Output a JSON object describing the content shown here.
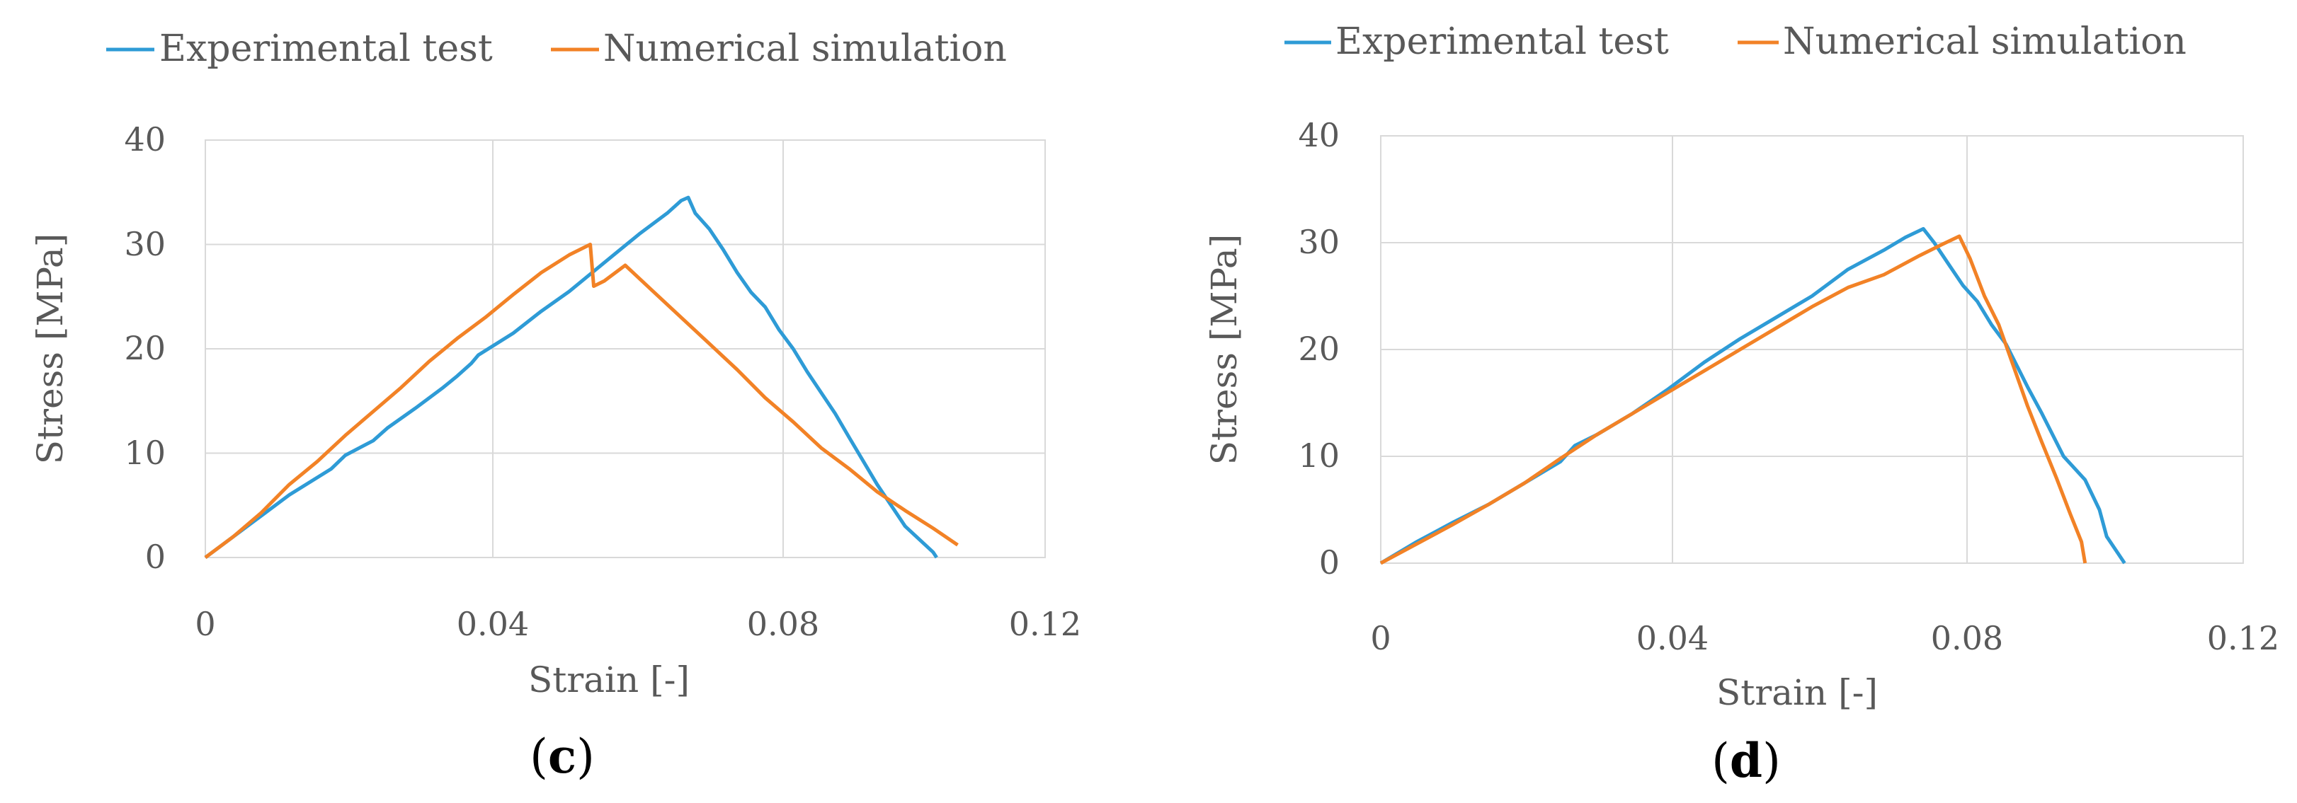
{
  "chart_data": [
    {
      "type": "line",
      "panel_label_open": "(",
      "panel_letter": "c",
      "panel_label_close": ")",
      "xlabel": "Strain [-]",
      "ylabel": "Stress [MPa]",
      "xlim": [
        0,
        0.12
      ],
      "ylim": [
        0,
        40
      ],
      "xticks": [
        0,
        0.04,
        0.08,
        0.12
      ],
      "xtick_labels": [
        "0",
        "0.04",
        "0.08",
        "0.12"
      ],
      "yticks": [
        0,
        10,
        20,
        30,
        40
      ],
      "ytick_labels": [
        "0",
        "10",
        "20",
        "30",
        "40"
      ],
      "grid": true,
      "legend_position": "top",
      "series": [
        {
          "name": "Experimental test",
          "color": "#2e9bd6",
          "x": [
            0,
            0.006,
            0.012,
            0.018,
            0.02,
            0.024,
            0.026,
            0.03,
            0.034,
            0.036,
            0.038,
            0.039,
            0.044,
            0.048,
            0.052,
            0.058,
            0.062,
            0.066,
            0.068,
            0.069,
            0.07,
            0.072,
            0.074,
            0.076,
            0.078,
            0.08,
            0.082,
            0.084,
            0.086,
            0.09,
            0.092,
            0.096,
            0.1,
            0.104,
            0.1045
          ],
          "y": [
            0,
            3,
            6,
            8.5,
            9.8,
            11.2,
            12.4,
            14.3,
            16.3,
            17.4,
            18.6,
            19.4,
            21.5,
            23.6,
            25.5,
            28.8,
            31,
            33,
            34.2,
            34.5,
            33,
            31.5,
            29.5,
            27.3,
            25.4,
            24,
            21.8,
            20,
            17.8,
            13.8,
            11.5,
            7,
            3,
            0.5,
            0
          ]
        },
        {
          "name": "Numerical simulation",
          "color": "#f28226",
          "x": [
            0,
            0.004,
            0.008,
            0.012,
            0.016,
            0.02,
            0.024,
            0.028,
            0.032,
            0.036,
            0.04,
            0.044,
            0.048,
            0.052,
            0.055,
            0.0555,
            0.057,
            0.06,
            0.064,
            0.068,
            0.072,
            0.076,
            0.08,
            0.084,
            0.088,
            0.092,
            0.096,
            0.1,
            0.104,
            0.1075
          ],
          "y": [
            0,
            2,
            4.3,
            7,
            9.2,
            11.7,
            14,
            16.3,
            18.8,
            21,
            23,
            25.2,
            27.3,
            29,
            30,
            26,
            26.5,
            28,
            25.5,
            23,
            20.5,
            18,
            15.3,
            13,
            10.5,
            8.5,
            6.3,
            4.5,
            2.8,
            1.2
          ]
        }
      ]
    },
    {
      "type": "line",
      "panel_label_open": "(",
      "panel_letter": "d",
      "panel_label_close": ")",
      "xlabel": "Strain [-]",
      "ylabel": "Stress [MPa]",
      "xlim": [
        0,
        0.12
      ],
      "ylim": [
        0,
        40
      ],
      "xticks": [
        0,
        0.04,
        0.08,
        0.12
      ],
      "xtick_labels": [
        "0",
        "0.04",
        "0.08",
        "0.12"
      ],
      "yticks": [
        0,
        10,
        20,
        30,
        40
      ],
      "ytick_labels": [
        "0",
        "10",
        "20",
        "30",
        "40"
      ],
      "grid": true,
      "legend_position": "top",
      "series": [
        {
          "name": "Experimental test",
          "color": "#2e9bd6",
          "x": [
            0,
            0.005,
            0.01,
            0.015,
            0.02,
            0.025,
            0.027,
            0.03,
            0.035,
            0.04,
            0.045,
            0.05,
            0.055,
            0.06,
            0.065,
            0.07,
            0.073,
            0.0755,
            0.077,
            0.079,
            0.081,
            0.083,
            0.085,
            0.087,
            0.09,
            0.092,
            0.095,
            0.098,
            0.1,
            0.101,
            0.1035
          ],
          "y": [
            0,
            2,
            3.8,
            5.5,
            7.5,
            9.5,
            11,
            12,
            14,
            16.3,
            18.8,
            21,
            23,
            25,
            27.5,
            29.3,
            30.5,
            31.3,
            30,
            28,
            26,
            24.5,
            22.3,
            20.5,
            16.5,
            14,
            10,
            7.8,
            5,
            2.5,
            0
          ]
        },
        {
          "name": "Numerical simulation",
          "color": "#f28226",
          "x": [
            0,
            0.005,
            0.01,
            0.015,
            0.02,
            0.025,
            0.03,
            0.035,
            0.04,
            0.045,
            0.05,
            0.055,
            0.06,
            0.065,
            0.07,
            0.075,
            0.078,
            0.0805,
            0.082,
            0.084,
            0.086,
            0.088,
            0.09,
            0.092,
            0.094,
            0.096,
            0.0975,
            0.098
          ],
          "y": [
            0,
            1.8,
            3.6,
            5.5,
            7.5,
            9.8,
            12,
            14,
            16,
            18,
            20,
            22,
            24,
            25.8,
            27,
            28.8,
            29.8,
            30.6,
            28.5,
            25,
            22.3,
            18.5,
            14.7,
            11.3,
            8,
            4.5,
            2,
            0
          ]
        }
      ]
    }
  ]
}
